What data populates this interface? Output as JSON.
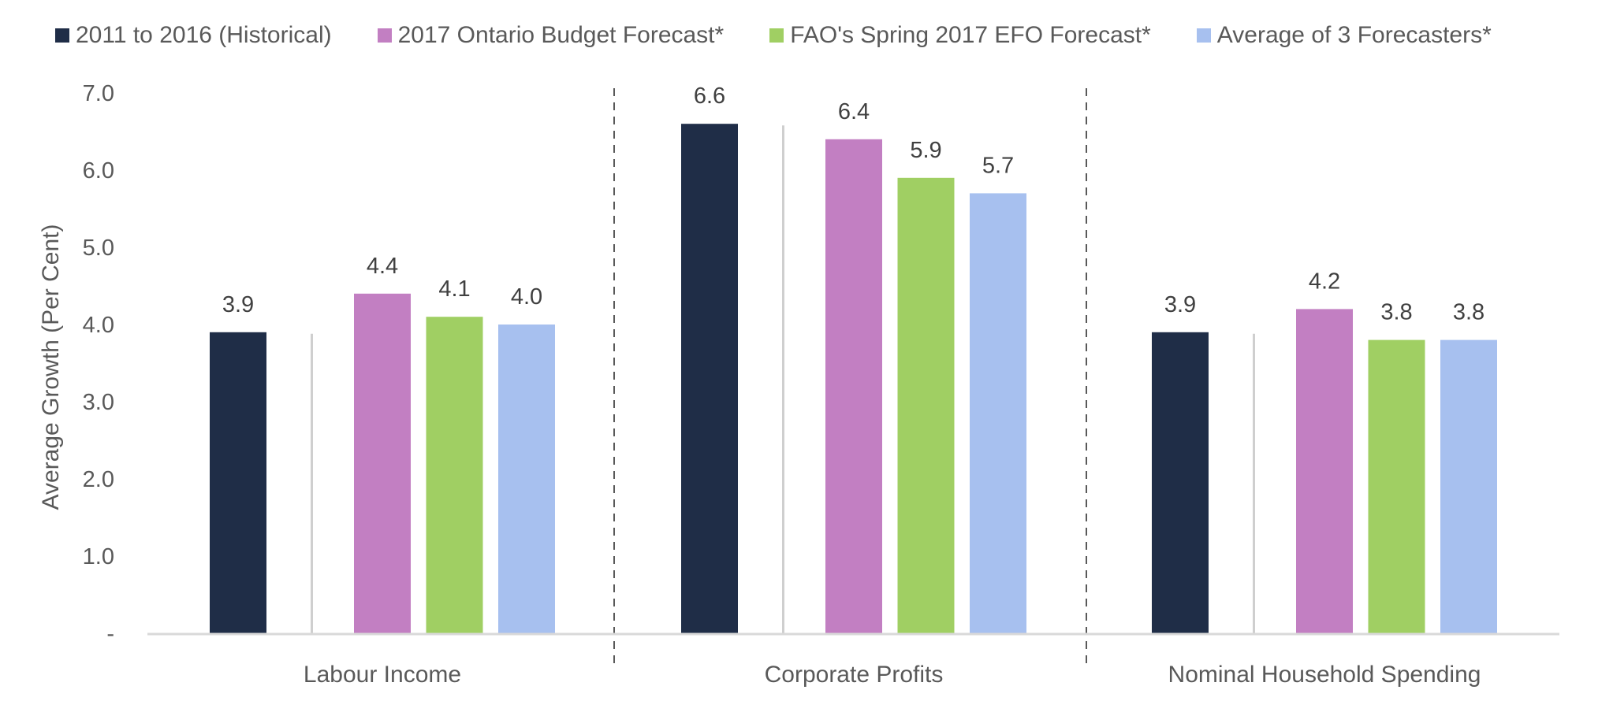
{
  "chart_data": {
    "type": "bar",
    "title": "",
    "xlabel": "",
    "ylabel": "Average Growth (Per Cent)",
    "ylim": [
      0,
      7
    ],
    "yticks": [
      0,
      1,
      2,
      3,
      4,
      5,
      6,
      7
    ],
    "ytick_labels": [
      "-",
      "1.0",
      "2.0",
      "3.0",
      "4.0",
      "5.0",
      "6.0",
      "7.0"
    ],
    "grid": false,
    "legend_position": "top",
    "categories": [
      "Labour Income",
      "Corporate Profits",
      "Nominal Household Spending"
    ],
    "series": [
      {
        "name": "2011 to 2016 (Historical)",
        "color": "#1f2d47",
        "values": [
          3.9,
          6.6,
          3.9
        ],
        "labels": [
          "3.9",
          "6.6",
          "3.9"
        ]
      },
      {
        "name": "2017 Ontario Budget Forecast*",
        "color": "#c27fc2",
        "values": [
          4.4,
          6.4,
          4.2
        ],
        "labels": [
          "4.4",
          "6.4",
          "4.2"
        ]
      },
      {
        "name": "FAO's Spring 2017 EFO Forecast*",
        "color": "#a0cf63",
        "values": [
          4.1,
          5.9,
          3.8
        ],
        "labels": [
          "4.1",
          "5.9",
          "3.8"
        ]
      },
      {
        "name": "Average of 3 Forecasters*",
        "color": "#a7c0ef",
        "values": [
          4.0,
          5.7,
          3.8
        ],
        "labels": [
          "4.0",
          "5.7",
          "3.8"
        ]
      }
    ],
    "annotations": {
      "group_dividers": "dashed vertical lines between categories",
      "historical_forecast_separator": "solid light-gray line between historical bar and forecast bars"
    }
  }
}
